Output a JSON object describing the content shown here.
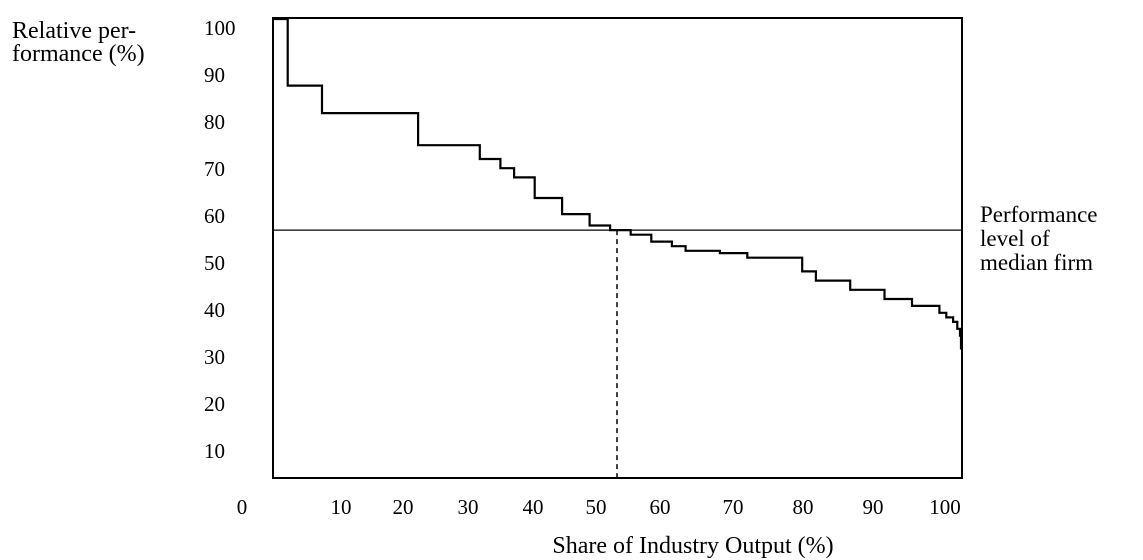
{
  "chart_data": {
    "type": "line",
    "title": "",
    "xlabel": "Share of Industry Output (%)",
    "ylabel_lines": [
      "Relative per-",
      "formance (%)"
    ],
    "xlim": [
      0,
      100
    ],
    "ylim": [
      0,
      100
    ],
    "x_ticks": [
      "0",
      "10",
      "20",
      "30",
      "40",
      "50",
      "60",
      "70",
      "80",
      "90",
      "100"
    ],
    "y_ticks": [
      "100",
      "90",
      "80",
      "70",
      "60",
      "50",
      "40",
      "30",
      "20",
      "10"
    ],
    "series": [
      {
        "style": "step",
        "points": [
          [
            0,
            100
          ],
          [
            2,
            100
          ],
          [
            2,
            85.5
          ],
          [
            7,
            85.5
          ],
          [
            7,
            79.5
          ],
          [
            21,
            79.5
          ],
          [
            21,
            72.5
          ],
          [
            30,
            72.5
          ],
          [
            30,
            69.5
          ],
          [
            33,
            69.5
          ],
          [
            33,
            67.5
          ],
          [
            35,
            67.5
          ],
          [
            35,
            65.5
          ],
          [
            38,
            65.5
          ],
          [
            38,
            61
          ],
          [
            42,
            61
          ],
          [
            42,
            57.5
          ],
          [
            46,
            57.5
          ],
          [
            46,
            55
          ],
          [
            49,
            55
          ],
          [
            49,
            54
          ],
          [
            52,
            54
          ],
          [
            52,
            53
          ],
          [
            55,
            53
          ],
          [
            55,
            51.5
          ],
          [
            58,
            51.5
          ],
          [
            58,
            50.5
          ],
          [
            60,
            50.5
          ],
          [
            60,
            49.5
          ],
          [
            65,
            49.5
          ],
          [
            65,
            49
          ],
          [
            69,
            49
          ],
          [
            69,
            48
          ],
          [
            77,
            48
          ],
          [
            77,
            45
          ],
          [
            79,
            45
          ],
          [
            79,
            43
          ],
          [
            84,
            43
          ],
          [
            84,
            41
          ],
          [
            89,
            41
          ],
          [
            89,
            39
          ],
          [
            93,
            39
          ],
          [
            93,
            37.5
          ],
          [
            97,
            37.5
          ],
          [
            97,
            36
          ],
          [
            98,
            36
          ],
          [
            98,
            35
          ],
          [
            99,
            35
          ],
          [
            99,
            34
          ],
          [
            99.6,
            34
          ],
          [
            99.6,
            32.5
          ],
          [
            100,
            32.5
          ],
          [
            100,
            31
          ],
          [
            100.2,
            31
          ],
          [
            100.2,
            29.5
          ],
          [
            100.5,
            29.5
          ],
          [
            100.5,
            28
          ]
        ]
      }
    ],
    "median_level": 54,
    "median_share": 50,
    "annotation_lines": [
      "Performance",
      "level of",
      "median firm"
    ],
    "colors": {
      "line": "#000000",
      "background": "#ffffff"
    }
  }
}
